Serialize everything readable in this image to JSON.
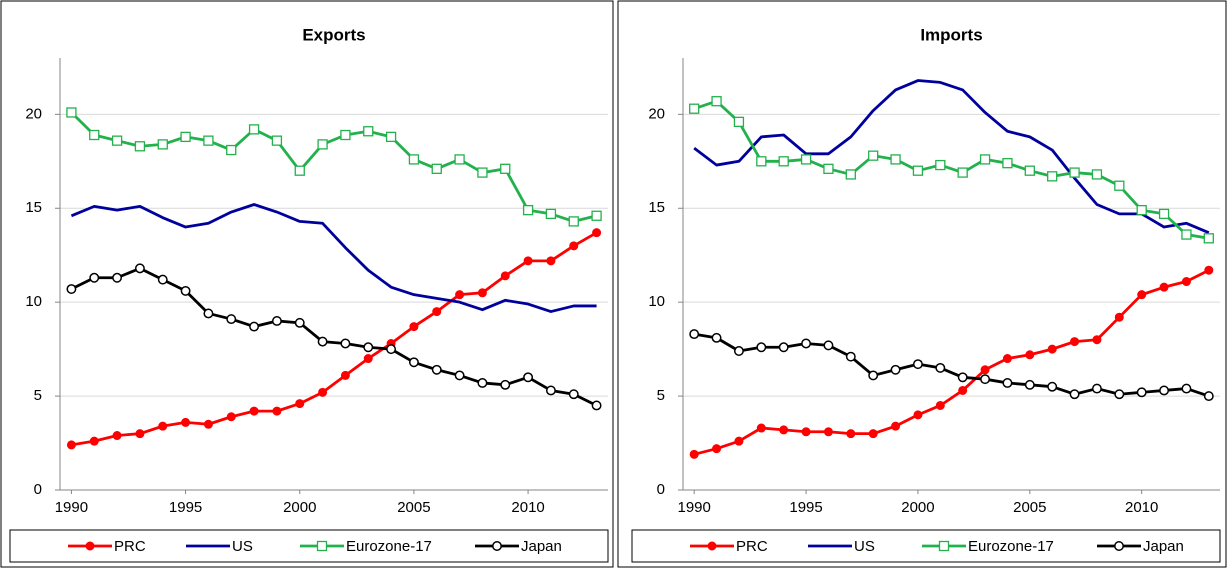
{
  "chart_data": [
    {
      "type": "line",
      "title": "Exports",
      "x": [
        1990,
        1991,
        1992,
        1993,
        1994,
        1995,
        1996,
        1997,
        1998,
        1999,
        2000,
        2001,
        2002,
        2003,
        2004,
        2005,
        2006,
        2007,
        2008,
        2009,
        2010,
        2011,
        2012,
        2013
      ],
      "xlim": [
        1989.5,
        2013.5
      ],
      "xticks": [
        1990,
        1995,
        2000,
        2005,
        2010
      ],
      "ylim": [
        0,
        23
      ],
      "yticks": [
        0,
        5,
        10,
        15,
        20
      ],
      "grid": true,
      "series": [
        {
          "name": "PRC",
          "color": "#ff0000",
          "marker": "filled-circle",
          "values": [
            2.4,
            2.6,
            2.9,
            3.0,
            3.4,
            3.6,
            3.5,
            3.9,
            4.2,
            4.2,
            4.6,
            5.2,
            6.1,
            7.0,
            7.8,
            8.7,
            9.5,
            10.4,
            10.5,
            11.4,
            12.2,
            12.2,
            13.0,
            13.7
          ]
        },
        {
          "name": "US",
          "color": "#00009c",
          "marker": "none",
          "values": [
            14.6,
            15.1,
            14.9,
            15.1,
            14.5,
            14.0,
            14.2,
            14.8,
            15.2,
            14.8,
            14.3,
            14.2,
            12.9,
            11.7,
            10.8,
            10.4,
            10.2,
            10.0,
            9.6,
            10.1,
            9.9,
            9.5,
            9.8,
            9.8
          ]
        },
        {
          "name": "Eurozone-17",
          "color": "#22b14c",
          "marker": "open-square",
          "values": [
            20.1,
            18.9,
            18.6,
            18.3,
            18.4,
            18.8,
            18.6,
            18.1,
            19.2,
            18.6,
            17.0,
            18.4,
            18.9,
            19.1,
            18.8,
            17.6,
            17.1,
            17.6,
            16.9,
            17.1,
            14.9,
            14.7,
            14.3,
            14.6
          ]
        },
        {
          "name": "Japan",
          "color": "#000000",
          "marker": "open-circle",
          "values": [
            10.7,
            11.3,
            11.3,
            11.8,
            11.2,
            10.6,
            9.4,
            9.1,
            8.7,
            9.0,
            8.9,
            7.9,
            7.8,
            7.6,
            7.5,
            6.8,
            6.4,
            6.1,
            5.7,
            5.6,
            6.0,
            5.3,
            5.1,
            4.5
          ]
        }
      ]
    },
    {
      "type": "line",
      "title": "Imports",
      "x": [
        1990,
        1991,
        1992,
        1993,
        1994,
        1995,
        1996,
        1997,
        1998,
        1999,
        2000,
        2001,
        2002,
        2003,
        2004,
        2005,
        2006,
        2007,
        2008,
        2009,
        2010,
        2011,
        2012,
        2013
      ],
      "xlim": [
        1989.5,
        2013.5
      ],
      "xticks": [
        1990,
        1995,
        2000,
        2005,
        2010
      ],
      "ylim": [
        0,
        23
      ],
      "yticks": [
        0,
        5,
        10,
        15,
        20
      ],
      "grid": true,
      "series": [
        {
          "name": "PRC",
          "color": "#ff0000",
          "marker": "filled-circle",
          "values": [
            1.9,
            2.2,
            2.6,
            3.3,
            3.2,
            3.1,
            3.1,
            3.0,
            3.0,
            3.4,
            4.0,
            4.5,
            5.3,
            6.4,
            7.0,
            7.2,
            7.5,
            7.9,
            8.0,
            9.2,
            10.4,
            10.8,
            11.1,
            11.7
          ]
        },
        {
          "name": "US",
          "color": "#00009c",
          "marker": "none",
          "values": [
            18.2,
            17.3,
            17.5,
            18.8,
            18.9,
            17.9,
            17.9,
            18.8,
            20.2,
            21.3,
            21.8,
            21.7,
            21.3,
            20.1,
            19.1,
            18.8,
            18.1,
            16.6,
            15.2,
            14.7,
            14.7,
            14.0,
            14.2,
            13.7
          ]
        },
        {
          "name": "Eurozone-17",
          "color": "#22b14c",
          "marker": "open-square",
          "values": [
            20.3,
            20.7,
            19.6,
            17.5,
            17.5,
            17.6,
            17.1,
            16.8,
            17.8,
            17.6,
            17.0,
            17.3,
            16.9,
            17.6,
            17.4,
            17.0,
            16.7,
            16.9,
            16.8,
            16.2,
            14.9,
            14.7,
            13.6,
            13.4
          ]
        },
        {
          "name": "Japan",
          "color": "#000000",
          "marker": "open-circle",
          "values": [
            8.3,
            8.1,
            7.4,
            7.6,
            7.6,
            7.8,
            7.7,
            7.1,
            6.1,
            6.4,
            6.7,
            6.5,
            6.0,
            5.9,
            5.7,
            5.6,
            5.5,
            5.1,
            5.4,
            5.1,
            5.2,
            5.3,
            5.4,
            5.0
          ]
        }
      ]
    }
  ]
}
